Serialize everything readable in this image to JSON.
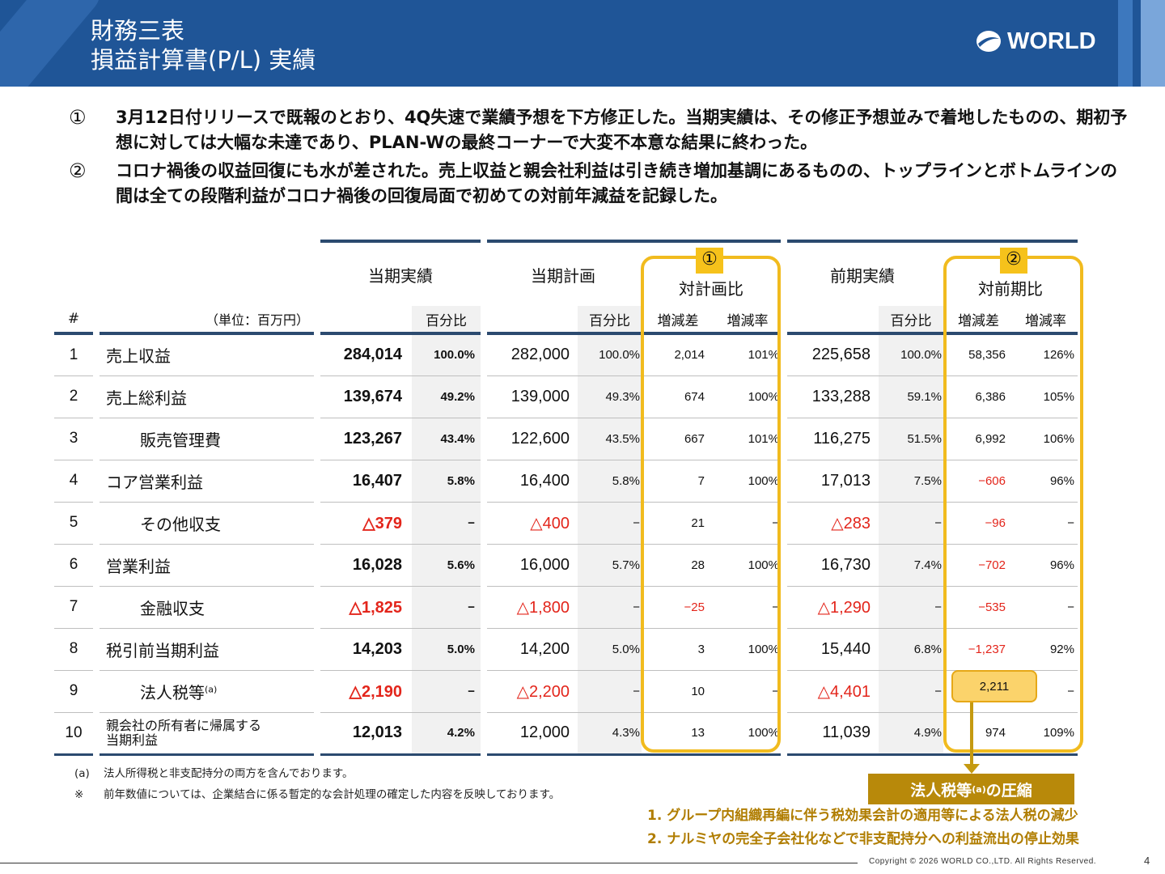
{
  "header": {
    "title_line1": "財務三表",
    "title_line2": "損益計算書(P/L) 実績",
    "logo_text": "WORLD"
  },
  "bullets": [
    {
      "marker": "①",
      "text": "3月12日付リリースで既報のとおり、4Q失速で業績予想を下方修正した。当期実績は、その修正予想並みで着地したものの、期初予想に対しては大幅な未達であり、PLAN-Wの最終コーナーで大変不本意な結果に終わった。"
    },
    {
      "marker": "②",
      "text": "コロナ禍後の収益回復にも水が差された。売上収益と親会社利益は引き続き増加基調にあるものの、トップラインとボトムラインの間は全ての段階利益がコロナ禍後の回復局面で初めての対前年減益を記録した。"
    }
  ],
  "table": {
    "group_headers": {
      "actual": "当期実績",
      "plan": "当期計画",
      "vs_plan": "対計画比",
      "prior": "前期実績",
      "vs_prior": "対前期比"
    },
    "badges": {
      "vs_plan": "①",
      "vs_prior": "②"
    },
    "sub_headers": {
      "num": "#",
      "unit": "（単位：百万円）",
      "ratio": "百分比",
      "diff": "増減差",
      "rate": "増減率"
    },
    "rows": [
      {
        "num": "1",
        "label": "売上収益",
        "a": "284,014",
        "ap": "100.0%",
        "b": "282,000",
        "bp": "100.0%",
        "c": "2,014",
        "cr": "101%",
        "d": "225,658",
        "dp": "100.0%",
        "e": "58,356",
        "er": "126%"
      },
      {
        "num": "2",
        "label": "売上総利益",
        "a": "139,674",
        "ap": "49.2%",
        "b": "139,000",
        "bp": "49.3%",
        "c": "674",
        "cr": "100%",
        "d": "133,288",
        "dp": "59.1%",
        "e": "6,386",
        "er": "105%"
      },
      {
        "num": "3",
        "label": "販売管理費",
        "a": "123,267",
        "ap": "43.4%",
        "b": "122,600",
        "bp": "43.5%",
        "c": "667",
        "cr": "101%",
        "d": "116,275",
        "dp": "51.5%",
        "e": "6,992",
        "er": "106%"
      },
      {
        "num": "4",
        "label": "コア営業利益",
        "a": "16,407",
        "ap": "5.8%",
        "b": "16,400",
        "bp": "5.8%",
        "c": "7",
        "cr": "100%",
        "d": "17,013",
        "dp": "7.5%",
        "e": "−606",
        "er": "96%"
      },
      {
        "num": "5",
        "label": "その他収支",
        "a": "△379",
        "ap": "−",
        "b": "△400",
        "bp": "−",
        "c": "21",
        "cr": "−",
        "d": "△283",
        "dp": "−",
        "e": "−96",
        "er": "−"
      },
      {
        "num": "6",
        "label": "営業利益",
        "a": "16,028",
        "ap": "5.6%",
        "b": "16,000",
        "bp": "5.7%",
        "c": "28",
        "cr": "100%",
        "d": "16,730",
        "dp": "7.4%",
        "e": "−702",
        "er": "96%"
      },
      {
        "num": "7",
        "label": "金融収支",
        "a": "△1,825",
        "ap": "−",
        "b": "△1,800",
        "bp": "−",
        "c": "−25",
        "cr": "−",
        "d": "△1,290",
        "dp": "−",
        "e": "−535",
        "er": "−"
      },
      {
        "num": "8",
        "label": "税引前当期利益",
        "a": "14,203",
        "ap": "5.0%",
        "b": "14,200",
        "bp": "5.0%",
        "c": "3",
        "cr": "100%",
        "d": "15,440",
        "dp": "6.8%",
        "e": "−1,237",
        "er": "92%"
      },
      {
        "num": "9",
        "label": "法人税等",
        "label_sup": "(a)",
        "a": "△2,190",
        "ap": "−",
        "b": "△2,200",
        "bp": "−",
        "c": "10",
        "cr": "−",
        "d": "△4,401",
        "dp": "−",
        "e": "2,211",
        "er": "−"
      },
      {
        "num": "10",
        "label_line1": "親会社の所有者に帰属する",
        "label_line2": "当期利益",
        "a": "12,013",
        "ap": "4.2%",
        "b": "12,000",
        "bp": "4.3%",
        "c": "13",
        "cr": "100%",
        "d": "11,039",
        "dp": "4.9%",
        "e": "974",
        "er": "109%"
      }
    ]
  },
  "notes": [
    {
      "key": "(a)",
      "text": "法人所得税と非支配持分の両方を含んでおります。"
    },
    {
      "key": "※",
      "text": "前年数値については、企業結合に係る暫定的な会計処理の確定した内容を反映しております。"
    }
  ],
  "callout": {
    "label_main": "法人税等",
    "label_sup": "(a)",
    "label_tail": "の圧縮",
    "reasons": [
      "1.  グループ内組織再編に伴う税効果会計の適用等による法人税の減少",
      "2.  ナルミヤの完全子会社化などで非支配持分への利益流出の停止効果"
    ]
  },
  "footer": {
    "copyright": "Copyright © 2026 WORLD CO.,LTD. All Rights Reserved.",
    "page": "4"
  },
  "colors": {
    "header_blue": "#1f5597",
    "highlight_yellow": "#f1bb1e",
    "negative_red": "#e3251b",
    "callout_gold": "#b8890a"
  }
}
